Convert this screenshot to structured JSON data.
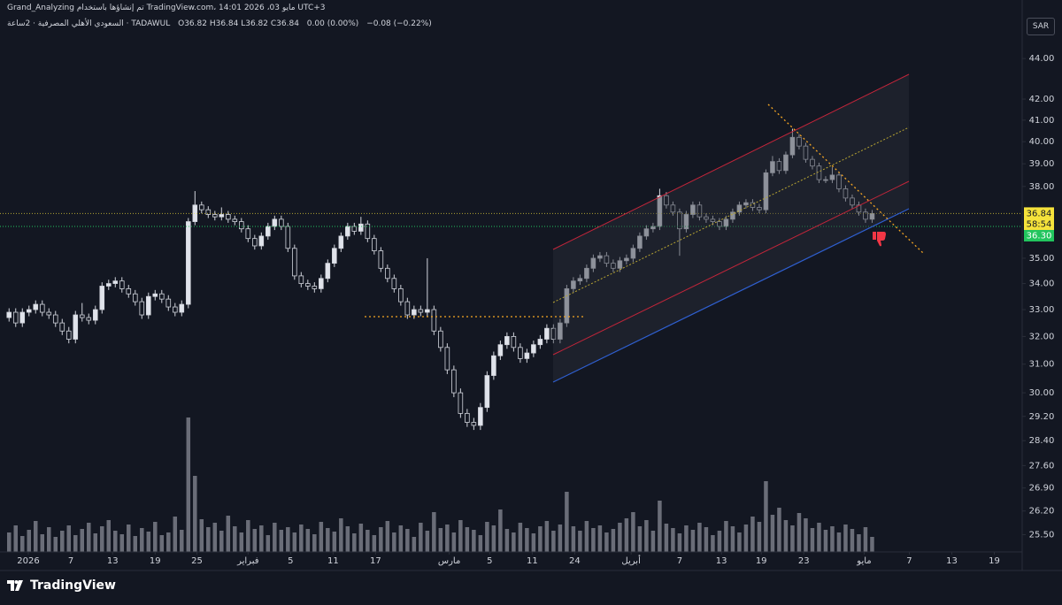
{
  "header": {
    "line1": "Grand_Analyzing تم إنشاؤها باستخدام TradingView.com، مايو 03، 2026 14:01 UTC+3",
    "symbol": "السعودي الأهلي المصرفية · 2ساعة · TADAWUL",
    "ohlc": "O36.82 H36.84 L36.82 C36.84",
    "change": "0.00 (0.00%)",
    "change_prev": "−0.08 (−0.22%)",
    "currency": "SAR",
    "logo": "TradingView"
  },
  "chart_data": {
    "type": "candlestick",
    "log_scale": true,
    "ylim": [
      25,
      46.2
    ],
    "yticks": [
      {
        "value": 44,
        "label": "44.00"
      },
      {
        "value": 42,
        "label": "42.00"
      },
      {
        "value": 41,
        "label": "41.00"
      },
      {
        "value": 40,
        "label": "40.00"
      },
      {
        "value": 39,
        "label": "39.00"
      },
      {
        "value": 38,
        "label": "38.00"
      },
      {
        "value": 35,
        "label": "35.00"
      },
      {
        "value": 34,
        "label": "34.00"
      },
      {
        "value": 33,
        "label": "33.00"
      },
      {
        "value": 32,
        "label": "32.00"
      },
      {
        "value": 31,
        "label": "31.00"
      },
      {
        "value": 30,
        "label": "30.00"
      },
      {
        "value": 29.2,
        "label": "29.20"
      },
      {
        "value": 28.4,
        "label": "28.40"
      },
      {
        "value": 27.6,
        "label": "27.60"
      },
      {
        "value": 26.9,
        "label": "26.90"
      },
      {
        "value": 26.2,
        "label": "26.20"
      },
      {
        "value": 25.5,
        "label": "25.50"
      }
    ],
    "xlim": [
      -0.3,
      152.6
    ],
    "xticks": [
      {
        "value": 2.9,
        "label": "2026"
      },
      {
        "value": 9.3,
        "label": "7"
      },
      {
        "value": 15.6,
        "label": "13"
      },
      {
        "value": 22,
        "label": "19"
      },
      {
        "value": 28.3,
        "label": "25"
      },
      {
        "value": 36,
        "label": "فبراير"
      },
      {
        "value": 42.4,
        "label": "5"
      },
      {
        "value": 48.8,
        "label": "11"
      },
      {
        "value": 55.2,
        "label": "17"
      },
      {
        "value": 66.3,
        "label": "مارس"
      },
      {
        "value": 72.4,
        "label": "5"
      },
      {
        "value": 78.8,
        "label": "11"
      },
      {
        "value": 85.2,
        "label": "24"
      },
      {
        "value": 93.7,
        "label": "أبريل"
      },
      {
        "value": 101,
        "label": "7"
      },
      {
        "value": 107.3,
        "label": "13"
      },
      {
        "value": 113.3,
        "label": "19"
      },
      {
        "value": 119.7,
        "label": "23"
      },
      {
        "value": 128.8,
        "label": "مايو"
      },
      {
        "value": 135.6,
        "label": "7"
      },
      {
        "value": 142,
        "label": "13"
      },
      {
        "value": 148.4,
        "label": "19"
      }
    ],
    "up_color": "#e0e3eb",
    "down_color": "#131722",
    "wick_color": "#d1d4dc",
    "volume_color": "#6a6d78",
    "last_price": 36.84,
    "countdown": "58:54",
    "last_price_color": "#f5e23b",
    "bid": {
      "value": 36.3,
      "label": "36.30"
    },
    "bid_color": "#22c55e",
    "candles": [
      [
        32.7,
        33.05,
        32.55,
        32.9
      ],
      [
        32.9,
        33.05,
        32.35,
        32.5
      ],
      [
        32.5,
        33.05,
        32.35,
        32.9
      ],
      [
        32.9,
        33.15,
        32.75,
        33.0
      ],
      [
        33.0,
        33.35,
        32.85,
        33.2
      ],
      [
        33.2,
        33.35,
        32.75,
        32.9
      ],
      [
        32.9,
        33.05,
        32.65,
        32.8
      ],
      [
        32.8,
        32.95,
        32.35,
        32.5
      ],
      [
        32.5,
        32.65,
        32.05,
        32.2
      ],
      [
        32.2,
        32.35,
        31.75,
        31.9
      ],
      [
        31.9,
        32.95,
        31.75,
        32.8
      ],
      [
        32.8,
        33.25,
        32.55,
        32.7
      ],
      [
        32.7,
        32.85,
        32.45,
        32.6
      ],
      [
        32.6,
        33.15,
        32.45,
        33.0
      ],
      [
        33.0,
        34.05,
        32.85,
        33.9
      ],
      [
        33.9,
        34.15,
        33.75,
        34.0
      ],
      [
        34.0,
        34.25,
        33.85,
        34.1
      ],
      [
        34.1,
        34.25,
        33.65,
        33.8
      ],
      [
        33.8,
        33.95,
        33.45,
        33.6
      ],
      [
        33.6,
        33.75,
        33.15,
        33.3
      ],
      [
        33.3,
        33.45,
        32.65,
        32.8
      ],
      [
        32.8,
        33.65,
        32.65,
        33.5
      ],
      [
        33.5,
        33.75,
        33.35,
        33.6
      ],
      [
        33.6,
        33.75,
        33.25,
        33.4
      ],
      [
        33.4,
        33.55,
        32.95,
        33.1
      ],
      [
        33.1,
        33.25,
        32.75,
        32.9
      ],
      [
        32.9,
        33.35,
        32.75,
        33.2
      ],
      [
        33.2,
        36.65,
        33.05,
        36.5
      ],
      [
        36.5,
        37.8,
        36.35,
        37.2
      ],
      [
        37.2,
        37.35,
        36.85,
        37.0
      ],
      [
        37.0,
        37.15,
        36.65,
        36.8
      ],
      [
        36.8,
        36.95,
        36.55,
        36.7
      ],
      [
        36.7,
        37.1,
        36.55,
        36.8
      ],
      [
        36.8,
        36.95,
        36.45,
        36.6
      ],
      [
        36.6,
        36.75,
        36.35,
        36.5
      ],
      [
        36.5,
        36.65,
        36.05,
        36.2
      ],
      [
        36.2,
        36.35,
        35.65,
        35.8
      ],
      [
        35.8,
        35.95,
        35.35,
        35.5
      ],
      [
        35.5,
        36.05,
        35.35,
        35.9
      ],
      [
        35.9,
        36.45,
        35.75,
        36.3
      ],
      [
        36.3,
        36.75,
        36.15,
        36.6
      ],
      [
        36.6,
        36.75,
        36.15,
        36.3
      ],
      [
        36.3,
        36.45,
        35.25,
        35.4
      ],
      [
        35.4,
        35.55,
        34.15,
        34.3
      ],
      [
        34.3,
        34.45,
        33.85,
        34.0
      ],
      [
        34.0,
        34.15,
        33.75,
        33.9
      ],
      [
        33.9,
        34.05,
        33.65,
        33.8
      ],
      [
        33.8,
        34.35,
        33.65,
        34.2
      ],
      [
        34.2,
        34.95,
        34.05,
        34.8
      ],
      [
        34.8,
        35.55,
        34.65,
        35.4
      ],
      [
        35.4,
        36.05,
        35.25,
        35.9
      ],
      [
        35.9,
        36.45,
        35.75,
        36.3
      ],
      [
        36.3,
        36.45,
        35.95,
        36.1
      ],
      [
        36.1,
        36.7,
        35.95,
        36.4
      ],
      [
        36.4,
        36.55,
        35.65,
        35.8
      ],
      [
        35.8,
        35.95,
        35.15,
        35.3
      ],
      [
        35.3,
        35.45,
        34.45,
        34.6
      ],
      [
        34.6,
        34.75,
        34.05,
        34.2
      ],
      [
        34.2,
        34.35,
        33.65,
        33.8
      ],
      [
        33.8,
        33.95,
        33.15,
        33.3
      ],
      [
        33.3,
        33.45,
        32.65,
        32.8
      ],
      [
        32.8,
        33.15,
        32.65,
        33.0
      ],
      [
        33.0,
        33.15,
        32.75,
        32.9
      ],
      [
        32.9,
        35.0,
        32.75,
        33.0
      ],
      [
        33.0,
        33.15,
        32.05,
        32.2
      ],
      [
        32.2,
        32.35,
        31.45,
        31.6
      ],
      [
        31.6,
        31.75,
        30.65,
        30.8
      ],
      [
        30.8,
        30.95,
        29.85,
        30.0
      ],
      [
        30.0,
        30.15,
        29.15,
        29.3
      ],
      [
        29.3,
        29.45,
        28.85,
        29.0
      ],
      [
        29.0,
        29.15,
        28.75,
        28.9
      ],
      [
        28.9,
        29.65,
        28.75,
        29.5
      ],
      [
        29.5,
        30.75,
        29.35,
        30.6
      ],
      [
        30.6,
        31.45,
        30.45,
        31.3
      ],
      [
        31.3,
        31.85,
        31.15,
        31.7
      ],
      [
        31.7,
        32.15,
        31.55,
        32.0
      ],
      [
        32.0,
        32.15,
        31.45,
        31.6
      ],
      [
        31.6,
        31.75,
        31.05,
        31.2
      ],
      [
        31.2,
        31.55,
        31.05,
        31.4
      ],
      [
        31.4,
        31.85,
        31.25,
        31.7
      ],
      [
        31.7,
        32.05,
        31.55,
        31.9
      ],
      [
        31.9,
        32.45,
        31.75,
        32.3
      ],
      [
        32.3,
        32.45,
        31.75,
        31.9
      ],
      [
        31.9,
        32.65,
        31.75,
        32.5
      ],
      [
        32.5,
        33.95,
        32.35,
        33.8
      ],
      [
        33.8,
        34.25,
        33.65,
        34.1
      ],
      [
        34.1,
        34.35,
        33.95,
        34.2
      ],
      [
        34.2,
        34.75,
        34.05,
        34.6
      ],
      [
        34.6,
        35.15,
        34.45,
        35.0
      ],
      [
        35.0,
        35.25,
        34.85,
        35.1
      ],
      [
        35.1,
        35.25,
        34.65,
        34.8
      ],
      [
        34.8,
        34.95,
        34.45,
        34.6
      ],
      [
        34.6,
        35.05,
        34.45,
        34.9
      ],
      [
        34.9,
        35.15,
        34.75,
        35.0
      ],
      [
        35.0,
        35.55,
        34.85,
        35.4
      ],
      [
        35.4,
        36.05,
        35.25,
        35.9
      ],
      [
        35.9,
        36.35,
        35.75,
        36.2
      ],
      [
        36.2,
        36.45,
        36.05,
        36.3
      ],
      [
        36.3,
        37.9,
        36.15,
        37.6
      ],
      [
        37.6,
        37.75,
        37.05,
        37.2
      ],
      [
        37.2,
        37.35,
        36.75,
        36.9
      ],
      [
        36.9,
        37.05,
        35.1,
        36.2
      ],
      [
        36.2,
        36.95,
        36.05,
        36.8
      ],
      [
        36.8,
        37.35,
        36.65,
        37.2
      ],
      [
        37.2,
        37.35,
        36.55,
        36.7
      ],
      [
        36.7,
        36.85,
        36.45,
        36.6
      ],
      [
        36.6,
        36.75,
        36.35,
        36.5
      ],
      [
        36.5,
        36.65,
        36.15,
        36.3
      ],
      [
        36.3,
        36.75,
        36.15,
        36.6
      ],
      [
        36.6,
        37.05,
        36.45,
        36.9
      ],
      [
        36.9,
        37.35,
        36.75,
        37.2
      ],
      [
        37.2,
        37.45,
        37.05,
        37.3
      ],
      [
        37.3,
        37.45,
        36.95,
        37.1
      ],
      [
        37.1,
        37.25,
        36.85,
        37.0
      ],
      [
        37.0,
        38.75,
        36.85,
        38.6
      ],
      [
        38.6,
        39.35,
        38.45,
        39.1
      ],
      [
        39.1,
        39.25,
        38.55,
        38.7
      ],
      [
        38.7,
        39.55,
        38.55,
        39.4
      ],
      [
        39.4,
        40.6,
        39.25,
        40.2
      ],
      [
        40.2,
        40.35,
        39.65,
        39.8
      ],
      [
        39.8,
        39.95,
        39.05,
        39.2
      ],
      [
        39.2,
        39.35,
        38.75,
        38.9
      ],
      [
        38.9,
        39.05,
        38.15,
        38.3
      ],
      [
        38.3,
        38.45,
        38.15,
        38.3
      ],
      [
        38.3,
        38.85,
        38.15,
        38.5
      ],
      [
        38.5,
        38.65,
        37.75,
        37.9
      ],
      [
        37.9,
        38.05,
        37.35,
        37.5
      ],
      [
        37.5,
        37.65,
        37.05,
        37.2
      ],
      [
        37.2,
        37.35,
        36.75,
        36.9
      ],
      [
        36.9,
        37.05,
        36.45,
        36.6
      ],
      [
        36.6,
        36.99,
        36.45,
        36.84
      ]
    ],
    "volume": [
      22,
      30,
      18,
      25,
      35,
      20,
      28,
      17,
      24,
      30,
      19,
      26,
      33,
      21,
      29,
      36,
      24,
      20,
      31,
      18,
      27,
      23,
      34,
      19,
      22,
      40,
      25,
      152,
      86,
      37,
      28,
      33,
      24,
      41,
      29,
      22,
      36,
      26,
      30,
      19,
      33,
      25,
      28,
      22,
      31,
      26,
      20,
      34,
      27,
      23,
      38,
      29,
      21,
      32,
      25,
      19,
      28,
      35,
      22,
      30,
      26,
      17,
      33,
      24,
      45,
      27,
      31,
      22,
      36,
      28,
      25,
      19,
      34,
      30,
      48,
      26,
      22,
      33,
      27,
      21,
      29,
      35,
      24,
      31,
      68,
      29,
      24,
      35,
      27,
      30,
      22,
      26,
      33,
      38,
      45,
      29,
      36,
      24,
      58,
      32,
      27,
      21,
      30,
      25,
      33,
      28,
      19,
      24,
      35,
      29,
      22,
      31,
      40,
      34,
      80,
      42,
      50,
      36,
      30,
      44,
      38,
      27,
      33,
      25,
      29,
      22,
      31,
      26,
      20,
      28,
      17
    ]
  }
}
